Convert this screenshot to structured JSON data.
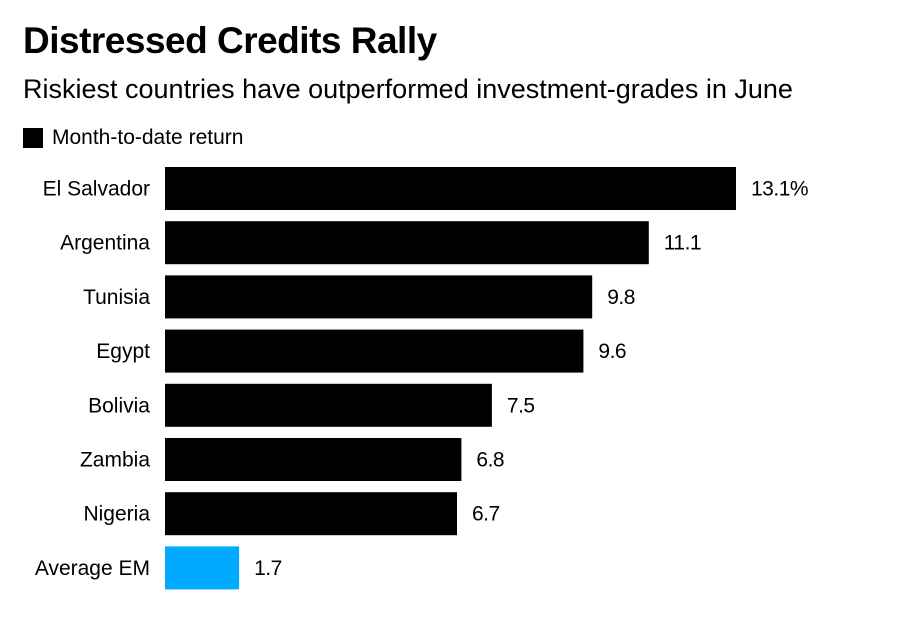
{
  "chart_data": {
    "type": "bar",
    "orientation": "horizontal",
    "title": "Distressed Credits Rally",
    "subtitle": "Riskiest countries have outperformed investment-grades in June",
    "xlabel": "",
    "ylabel": "",
    "unit": "%",
    "xlim": [
      0,
      13.1
    ],
    "grid": false,
    "legend": {
      "position": "top-left",
      "entries": [
        {
          "label": "Month-to-date return",
          "color": "#000000"
        }
      ]
    },
    "categories": [
      "El Salvador",
      "Argentina",
      "Tunisia",
      "Egypt",
      "Bolivia",
      "Zambia",
      "Nigeria",
      "Average EM"
    ],
    "series": [
      {
        "name": "Month-to-date return",
        "values": [
          13.1,
          11.1,
          9.8,
          9.6,
          7.5,
          6.8,
          6.7,
          1.7
        ],
        "labels": [
          "13.1%",
          "11.1",
          "9.8",
          "9.6",
          "7.5",
          "6.8",
          "6.7",
          "1.7"
        ],
        "colors": [
          "#000000",
          "#000000",
          "#000000",
          "#000000",
          "#000000",
          "#000000",
          "#000000",
          "#00aaff"
        ]
      }
    ]
  }
}
